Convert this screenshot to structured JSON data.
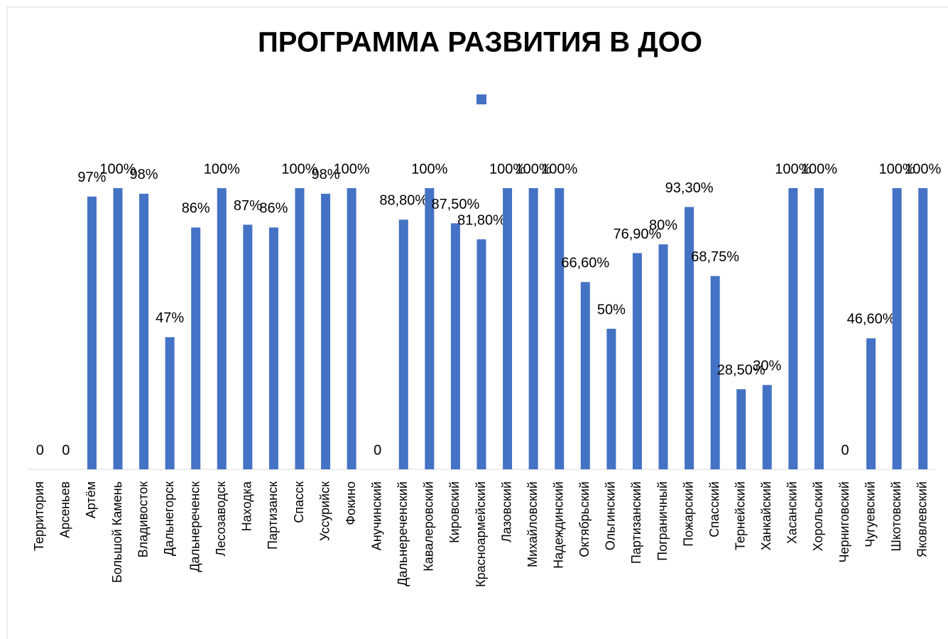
{
  "chart_data": {
    "type": "bar",
    "title": "ПРОГРАММА РАЗВИТИЯ В ДОО",
    "categories": [
      "Территория",
      "Арсеньев",
      "Артём",
      "Большой Камень",
      "Владивосток",
      "Дальнегорск",
      "Дальнереченск",
      "Лесозаводск",
      "Находка",
      "Партизанск",
      "Спасск",
      "Уссурийск",
      "Фокино",
      "Анучинский",
      "Дальнереченский",
      "Кавалеровский",
      "Кировский",
      "Красноармейский",
      "Лазовский",
      "Михайловский",
      "Надеждинский",
      "Октябрьский",
      "Ольгинский",
      "Партизанский",
      "Пограничный",
      "Пожарский",
      "Спасский",
      "Тернейский",
      "Ханкайский",
      "Хасанский",
      "Хорольский",
      "Черниговский",
      "Чугуевский",
      "Шкотовский",
      "Яковлевский"
    ],
    "values": [
      0,
      0,
      97,
      100,
      98,
      47,
      86,
      100,
      87,
      86,
      100,
      98,
      100,
      0,
      88.8,
      100,
      87.5,
      81.8,
      100,
      100,
      100,
      66.6,
      50,
      76.9,
      80,
      93.3,
      68.75,
      28.5,
      30,
      100,
      100,
      0,
      46.6,
      100,
      100
    ],
    "value_labels": [
      "0",
      "0",
      "97%",
      "100%",
      "98%",
      "47%",
      "86%",
      "100%",
      "87%",
      "86%",
      "100%",
      "98%",
      "100%",
      "0",
      "88,80%",
      "100%",
      "87,50%",
      "81,80%",
      "100%",
      "100%",
      "100%",
      "66,60%",
      "50%",
      "76,90%",
      "80%",
      "93,30%",
      "68,75%",
      "28,50%",
      "30%",
      "100%",
      "100%",
      "0",
      "46,60%",
      "100%",
      "100%"
    ],
    "color": "#4472c4",
    "ylim": [
      0,
      100
    ],
    "legend": "top"
  }
}
